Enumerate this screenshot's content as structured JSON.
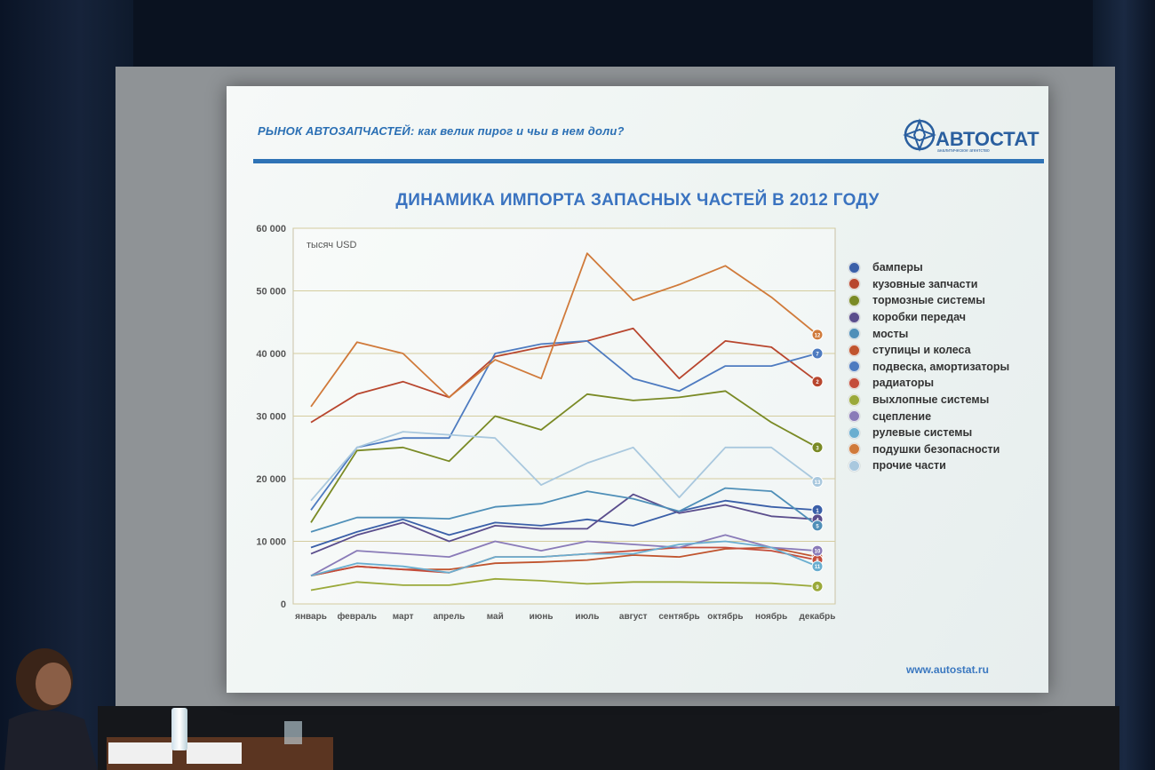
{
  "slide": {
    "header": "РЫНОК АВТОЗАПЧАСТЕЙ: как велик пирог и чьи в нем доли?",
    "logo_text": "АВТОСТАТ",
    "logo_sub": "аналитическое агентство",
    "url": "www.autostat.ru"
  },
  "chart_data": {
    "type": "line",
    "title": "ДИНАМИКА ИМПОРТА ЗАПАСНЫХ ЧАСТЕЙ В 2012 ГОДУ",
    "unit_label": "тысяч USD",
    "ylim": [
      0,
      60000
    ],
    "yticks": [
      "0",
      "10 000",
      "20 000",
      "30 000",
      "40 000",
      "50 000",
      "60 000"
    ],
    "grid": true,
    "legend_position": "right",
    "categories": [
      "январь",
      "февраль",
      "март",
      "апрель",
      "май",
      "июнь",
      "июль",
      "август",
      "сентябрь",
      "октябрь",
      "ноябрь",
      "декабрь"
    ],
    "series": [
      {
        "name": "бамперы",
        "num": "1",
        "color": "#3a5fa8",
        "values": [
          9000,
          11500,
          13500,
          11000,
          13000,
          12500,
          13500,
          12500,
          14800,
          16500,
          15500,
          15000
        ]
      },
      {
        "name": "кузовные запчасти",
        "num": "2",
        "color": "#b8462e",
        "values": [
          29000,
          33500,
          35500,
          33000,
          39500,
          41000,
          42000,
          44000,
          36000,
          42000,
          41000,
          35500
        ]
      },
      {
        "name": "тормозные системы",
        "num": "3",
        "color": "#7a8a25",
        "values": [
          13000,
          24500,
          25000,
          22800,
          30000,
          27800,
          33500,
          32500,
          33000,
          34000,
          29000,
          25000
        ]
      },
      {
        "name": "коробки передач",
        "num": "4",
        "color": "#5a4d8c",
        "values": [
          8000,
          11000,
          13000,
          10000,
          12500,
          12000,
          12000,
          17500,
          14500,
          15800,
          14000,
          13500
        ]
      },
      {
        "name": "мосты",
        "num": "5",
        "color": "#4f8fb8",
        "values": [
          11500,
          13800,
          13800,
          13600,
          15500,
          16000,
          18000,
          16800,
          14800,
          18500,
          18000,
          12500
        ]
      },
      {
        "name": "ступицы и колеса",
        "num": "6",
        "color": "#c0542e",
        "values": [
          4500,
          6000,
          5500,
          5500,
          6500,
          6700,
          7000,
          7800,
          7500,
          8800,
          9000,
          7500
        ]
      },
      {
        "name": "подвеска, амортизаторы",
        "num": "7",
        "color": "#4e7bc0",
        "values": [
          15000,
          25000,
          26500,
          26500,
          40000,
          41500,
          42000,
          36000,
          34000,
          38000,
          38000,
          40000
        ]
      },
      {
        "name": "радиаторы",
        "num": "8",
        "color": "#c44c3a",
        "values": [
          4500,
          6000,
          5500,
          5000,
          7500,
          7500,
          8000,
          8500,
          9000,
          9000,
          8500,
          7000
        ]
      },
      {
        "name": "выхлопные системы",
        "num": "9",
        "color": "#9aa93a",
        "values": [
          2200,
          3500,
          3000,
          3000,
          4000,
          3700,
          3200,
          3500,
          3500,
          3400,
          3300,
          2800
        ]
      },
      {
        "name": "сцепление",
        "num": "10",
        "color": "#8a7bb8",
        "values": [
          4500,
          8500,
          8000,
          7500,
          10000,
          8500,
          10000,
          9500,
          9000,
          11000,
          9000,
          8500
        ]
      },
      {
        "name": "рулевые системы",
        "num": "11",
        "color": "#6aaed0",
        "values": [
          4500,
          6500,
          6000,
          5000,
          7500,
          7500,
          8000,
          8000,
          9500,
          10000,
          9000,
          6000
        ]
      },
      {
        "name": "подушки безопасности",
        "num": "12",
        "color": "#d07a3a",
        "values": [
          31500,
          41800,
          40000,
          33000,
          39000,
          36000,
          56000,
          48500,
          51000,
          54000,
          49000,
          43000
        ]
      },
      {
        "name": "прочие части",
        "num": "13",
        "color": "#a9c8de",
        "values": [
          16500,
          25000,
          27500,
          27000,
          26500,
          19000,
          22500,
          25000,
          17000,
          25000,
          25000,
          19500
        ]
      }
    ]
  }
}
